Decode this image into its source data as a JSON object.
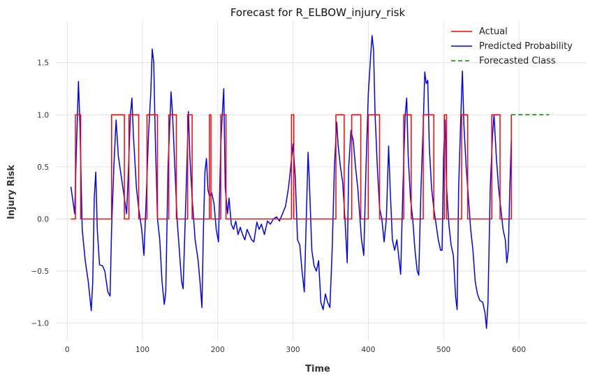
{
  "chart_data": {
    "type": "line",
    "title": "Forecast for R_ELBOW_injury_risk",
    "xlabel": "Time",
    "ylabel": "Injury Risk",
    "xlim": [
      -15,
      690
    ],
    "ylim": [
      -1.17,
      1.9
    ],
    "x_ticks": [
      0,
      100,
      200,
      300,
      400,
      500,
      600
    ],
    "y_ticks": [
      -1.0,
      -0.5,
      0.0,
      0.5,
      1.0,
      1.5
    ],
    "y_tick_labels": [
      "−1.0",
      "−0.5",
      "0.0",
      "0.5",
      "1.0",
      "1.5"
    ],
    "grid": true,
    "legend_position": "top-right",
    "series": [
      {
        "name": "Actual",
        "color": "#ff0000",
        "style": "solid",
        "points": [
          [
            5,
            0
          ],
          [
            11,
            0
          ],
          [
            11,
            1
          ],
          [
            18,
            1
          ],
          [
            18,
            0
          ],
          [
            59,
            0
          ],
          [
            59,
            1
          ],
          [
            76,
            1
          ],
          [
            76,
            0
          ],
          [
            82,
            0
          ],
          [
            82,
            1
          ],
          [
            95,
            1
          ],
          [
            95,
            0
          ],
          [
            106,
            0
          ],
          [
            106,
            1
          ],
          [
            120,
            1
          ],
          [
            120,
            0
          ],
          [
            135,
            0
          ],
          [
            135,
            1
          ],
          [
            145,
            1
          ],
          [
            145,
            0
          ],
          [
            160,
            0
          ],
          [
            160,
            1
          ],
          [
            166,
            1
          ],
          [
            166,
            0
          ],
          [
            189,
            0
          ],
          [
            189,
            1
          ],
          [
            191,
            1
          ],
          [
            191,
            0
          ],
          [
            204,
            0
          ],
          [
            204,
            1
          ],
          [
            211,
            1
          ],
          [
            211,
            0
          ],
          [
            298,
            0
          ],
          [
            298,
            1
          ],
          [
            301,
            1
          ],
          [
            301,
            0
          ],
          [
            357,
            0
          ],
          [
            357,
            1
          ],
          [
            368,
            1
          ],
          [
            368,
            0
          ],
          [
            378,
            0
          ],
          [
            378,
            1
          ],
          [
            390,
            1
          ],
          [
            390,
            0
          ],
          [
            400,
            0
          ],
          [
            400,
            1
          ],
          [
            415,
            1
          ],
          [
            415,
            0
          ],
          [
            447,
            0
          ],
          [
            447,
            1
          ],
          [
            457,
            1
          ],
          [
            457,
            0
          ],
          [
            473,
            0
          ],
          [
            473,
            1
          ],
          [
            487,
            1
          ],
          [
            487,
            0
          ],
          [
            501,
            0
          ],
          [
            501,
            1
          ],
          [
            504,
            1
          ],
          [
            504,
            0
          ],
          [
            524,
            0
          ],
          [
            524,
            1
          ],
          [
            532,
            1
          ],
          [
            532,
            0
          ],
          [
            564,
            0
          ],
          [
            564,
            1
          ],
          [
            575,
            1
          ],
          [
            575,
            0
          ],
          [
            590,
            0
          ],
          [
            590,
            1
          ]
        ]
      },
      {
        "name": "Predicted Probability",
        "color": "#0000ff",
        "style": "solid",
        "points": [
          [
            5,
            0.31
          ],
          [
            10,
            0.05
          ],
          [
            12,
            0.6
          ],
          [
            15,
            1.32
          ],
          [
            17,
            0.9
          ],
          [
            20,
            -0.1
          ],
          [
            24,
            -0.4
          ],
          [
            28,
            -0.6
          ],
          [
            32,
            -0.88
          ],
          [
            34,
            -0.6
          ],
          [
            36,
            0.2
          ],
          [
            38,
            0.45
          ],
          [
            40,
            -0.1
          ],
          [
            43,
            -0.44
          ],
          [
            47,
            -0.45
          ],
          [
            50,
            -0.5
          ],
          [
            54,
            -0.7
          ],
          [
            57,
            -0.74
          ],
          [
            59,
            -0.1
          ],
          [
            62,
            0.5
          ],
          [
            65,
            0.95
          ],
          [
            68,
            0.6
          ],
          [
            72,
            0.4
          ],
          [
            76,
            0.2
          ],
          [
            79,
            0.05
          ],
          [
            81,
            0.4
          ],
          [
            84,
            1.0
          ],
          [
            86,
            1.16
          ],
          [
            88,
            0.8
          ],
          [
            92,
            0.3
          ],
          [
            95,
            0.1
          ],
          [
            99,
            -0.1
          ],
          [
            102,
            -0.35
          ],
          [
            105,
            0.2
          ],
          [
            108,
            0.8
          ],
          [
            111,
            1.2
          ],
          [
            113,
            1.63
          ],
          [
            115,
            1.5
          ],
          [
            117,
            0.8
          ],
          [
            120,
            0.0
          ],
          [
            123,
            -0.2
          ],
          [
            126,
            -0.6
          ],
          [
            129,
            -0.82
          ],
          [
            131,
            -0.7
          ],
          [
            134,
            0.5
          ],
          [
            136,
            0.85
          ],
          [
            138,
            1.22
          ],
          [
            140,
            1.0
          ],
          [
            143,
            0.5
          ],
          [
            146,
            0.0
          ],
          [
            149,
            -0.3
          ],
          [
            152,
            -0.6
          ],
          [
            154,
            -0.67
          ],
          [
            156,
            -0.2
          ],
          [
            159,
            0.5
          ],
          [
            161,
            1.03
          ],
          [
            163,
            0.6
          ],
          [
            166,
            0.2
          ],
          [
            170,
            -0.2
          ],
          [
            174,
            -0.4
          ],
          [
            177,
            -0.65
          ],
          [
            179,
            -0.85
          ],
          [
            181,
            -0.1
          ],
          [
            183,
            0.45
          ],
          [
            185,
            0.58
          ],
          [
            187,
            0.28
          ],
          [
            189,
            0.22
          ],
          [
            192,
            0.25
          ],
          [
            195,
            0.15
          ],
          [
            198,
            -0.1
          ],
          [
            201,
            -0.22
          ],
          [
            204,
            0.7
          ],
          [
            206,
            1.0
          ],
          [
            208,
            1.25
          ],
          [
            210,
            0.3
          ],
          [
            213,
            0.05
          ],
          [
            215,
            0.2
          ],
          [
            218,
            -0.05
          ],
          [
            221,
            -0.1
          ],
          [
            224,
            -0.02
          ],
          [
            227,
            -0.15
          ],
          [
            230,
            -0.08
          ],
          [
            233,
            -0.15
          ],
          [
            236,
            -0.2
          ],
          [
            239,
            -0.1
          ],
          [
            242,
            -0.15
          ],
          [
            245,
            -0.2
          ],
          [
            248,
            -0.22
          ],
          [
            252,
            -0.03
          ],
          [
            255,
            -0.1
          ],
          [
            258,
            -0.05
          ],
          [
            262,
            -0.15
          ],
          [
            266,
            -0.02
          ],
          [
            270,
            -0.05
          ],
          [
            274,
            0.0
          ],
          [
            278,
            0.02
          ],
          [
            282,
            -0.02
          ],
          [
            286,
            0.05
          ],
          [
            290,
            0.12
          ],
          [
            294,
            0.3
          ],
          [
            297,
            0.5
          ],
          [
            300,
            0.72
          ],
          [
            303,
            0.4
          ],
          [
            306,
            -0.2
          ],
          [
            309,
            -0.25
          ],
          [
            312,
            -0.5
          ],
          [
            315,
            -0.7
          ],
          [
            318,
            0.1
          ],
          [
            320,
            0.64
          ],
          [
            322,
            0.3
          ],
          [
            325,
            -0.3
          ],
          [
            328,
            -0.45
          ],
          [
            331,
            -0.5
          ],
          [
            334,
            -0.4
          ],
          [
            337,
            -0.8
          ],
          [
            340,
            -0.87
          ],
          [
            343,
            -0.72
          ],
          [
            346,
            -0.8
          ],
          [
            349,
            -0.85
          ],
          [
            352,
            -0.3
          ],
          [
            355,
            0.5
          ],
          [
            358,
            0.93
          ],
          [
            360,
            0.7
          ],
          [
            363,
            0.5
          ],
          [
            366,
            0.35
          ],
          [
            369,
            0.0
          ],
          [
            372,
            -0.42
          ],
          [
            374,
            0.5
          ],
          [
            377,
            0.85
          ],
          [
            380,
            0.75
          ],
          [
            383,
            0.5
          ],
          [
            386,
            0.3
          ],
          [
            388,
            0.1
          ],
          [
            391,
            -0.2
          ],
          [
            394,
            -0.35
          ],
          [
            397,
            0.5
          ],
          [
            400,
            1.2
          ],
          [
            403,
            1.55
          ],
          [
            405,
            1.76
          ],
          [
            407,
            1.62
          ],
          [
            409,
            1.0
          ],
          [
            412,
            0.5
          ],
          [
            415,
            0.1
          ],
          [
            418,
            0.0
          ],
          [
            421,
            -0.22
          ],
          [
            424,
            0.0
          ],
          [
            427,
            0.7
          ],
          [
            429,
            0.3
          ],
          [
            432,
            -0.2
          ],
          [
            435,
            -0.3
          ],
          [
            438,
            -0.2
          ],
          [
            441,
            -0.4
          ],
          [
            443,
            -0.53
          ],
          [
            446,
            0.3
          ],
          [
            449,
            1.0
          ],
          [
            451,
            1.16
          ],
          [
            453,
            0.6
          ],
          [
            456,
            0.2
          ],
          [
            459,
            0.0
          ],
          [
            462,
            -0.3
          ],
          [
            465,
            -0.5
          ],
          [
            467,
            -0.54
          ],
          [
            470,
            0.3
          ],
          [
            473,
            0.9
          ],
          [
            475,
            1.41
          ],
          [
            477,
            1.3
          ],
          [
            479,
            1.33
          ],
          [
            481,
            0.7
          ],
          [
            484,
            0.3
          ],
          [
            487,
            0.1
          ],
          [
            490,
            -0.05
          ],
          [
            493,
            -0.2
          ],
          [
            496,
            -0.3
          ],
          [
            498,
            -0.3
          ],
          [
            500,
            0.6
          ],
          [
            502,
            0.95
          ],
          [
            504,
            0.3
          ],
          [
            507,
            -0.05
          ],
          [
            510,
            -0.25
          ],
          [
            513,
            -0.35
          ],
          [
            516,
            -0.75
          ],
          [
            518,
            -0.87
          ],
          [
            520,
            0.3
          ],
          [
            523,
            1.0
          ],
          [
            525,
            1.42
          ],
          [
            527,
            0.9
          ],
          [
            530,
            0.5
          ],
          [
            533,
            0.2
          ],
          [
            536,
            -0.1
          ],
          [
            539,
            -0.3
          ],
          [
            542,
            -0.6
          ],
          [
            545,
            -0.72
          ],
          [
            548,
            -0.78
          ],
          [
            552,
            -0.8
          ],
          [
            555,
            -0.9
          ],
          [
            557,
            -1.05
          ],
          [
            559,
            -0.8
          ],
          [
            562,
            0.3
          ],
          [
            565,
            0.8
          ],
          [
            567,
            1.0
          ],
          [
            570,
            0.6
          ],
          [
            573,
            0.3
          ],
          [
            576,
            0.1
          ],
          [
            579,
            -0.1
          ],
          [
            582,
            -0.2
          ],
          [
            584,
            -0.42
          ],
          [
            586,
            -0.3
          ],
          [
            588,
            0.3
          ],
          [
            590,
            0.76
          ]
        ]
      },
      {
        "name": "Forecasted Class",
        "color": "#008000",
        "style": "dashed",
        "points": [
          [
            590,
            1
          ],
          [
            640,
            1
          ]
        ]
      }
    ]
  }
}
